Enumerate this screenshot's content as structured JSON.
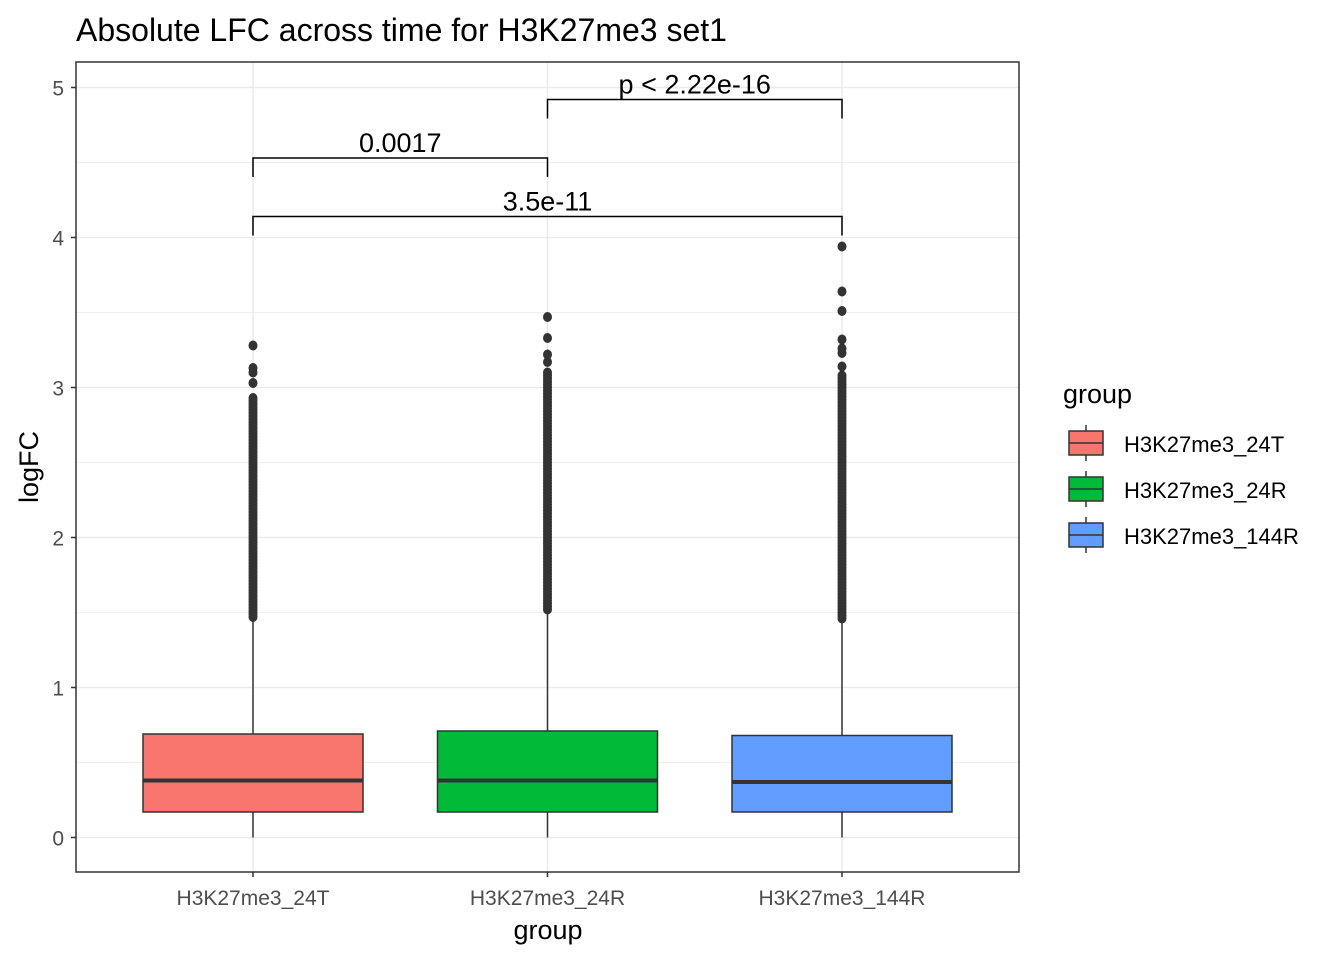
{
  "chart_data": {
    "type": "boxplot",
    "title": "Absolute LFC across time for H3K27me3 set1",
    "xlabel": "group",
    "ylabel": "logFC",
    "ylim": [
      -0.23,
      5.17
    ],
    "yticks": [
      0,
      1,
      2,
      3,
      4,
      5
    ],
    "grid": true,
    "legend": {
      "title": "group",
      "placement": "right"
    },
    "categories": [
      "H3K27me3_24T",
      "H3K27me3_24R",
      "H3K27me3_144R"
    ],
    "colors": [
      "#F8766D",
      "#00BA38",
      "#619CFF"
    ],
    "boxes": [
      {
        "name": "H3K27me3_24T",
        "min": 0,
        "q1": 0.17,
        "median": 0.38,
        "q3": 0.69,
        "whisker_high": 1.47,
        "dense_outlier_range": [
          1.47,
          2.95
        ],
        "outliers": [
          3.03,
          3.1,
          3.13,
          3.28
        ]
      },
      {
        "name": "H3K27me3_24R",
        "min": 0,
        "q1": 0.17,
        "median": 0.38,
        "q3": 0.71,
        "whisker_high": 1.52,
        "dense_outlier_range": [
          1.52,
          3.12
        ],
        "outliers": [
          3.17,
          3.22,
          3.33,
          3.47
        ]
      },
      {
        "name": "H3K27me3_144R",
        "min": 0,
        "q1": 0.17,
        "median": 0.37,
        "q3": 0.68,
        "whisker_high": 1.46,
        "dense_outlier_range": [
          1.46,
          3.1
        ],
        "outliers": [
          3.14,
          3.23,
          3.26,
          3.32,
          3.51,
          3.64,
          3.94
        ]
      }
    ],
    "comparisons": [
      {
        "from": 0,
        "to": 1,
        "y": 4.53,
        "label": "0.0017"
      },
      {
        "from": 0,
        "to": 2,
        "y": 4.14,
        "label": "3.5e-11"
      },
      {
        "from": 1,
        "to": 2,
        "y": 4.92,
        "label": "p < 2.22e-16"
      }
    ]
  }
}
